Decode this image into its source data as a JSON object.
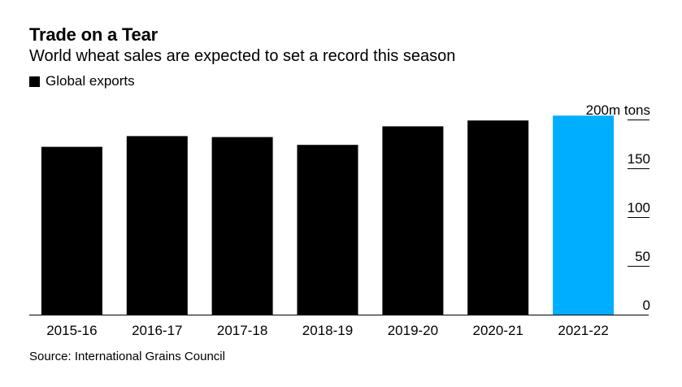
{
  "title": "Trade on a Tear",
  "subtitle": "World wheat sales are expected to set a record this season",
  "legend_label": "Global exports",
  "source": "Source: International Grains Council",
  "chart_data": {
    "type": "bar",
    "categories": [
      "2015-16",
      "2016-17",
      "2017-18",
      "2018-19",
      "2019-20",
      "2020-21",
      "2021-22"
    ],
    "series": [
      {
        "name": "Global exports",
        "values": [
          172,
          183,
          182,
          174,
          193,
          199,
          204
        ]
      }
    ],
    "highlight_index": 6,
    "colors": {
      "default": "#000000",
      "highlight": "#00AEFF"
    },
    "ylim": [
      0,
      200
    ],
    "yticks": [
      0,
      50,
      100,
      150,
      200
    ],
    "ytick_labels": [
      "0",
      "50",
      "100",
      "150",
      "200m tons"
    ],
    "y_axis_position": "right",
    "grid": false
  }
}
